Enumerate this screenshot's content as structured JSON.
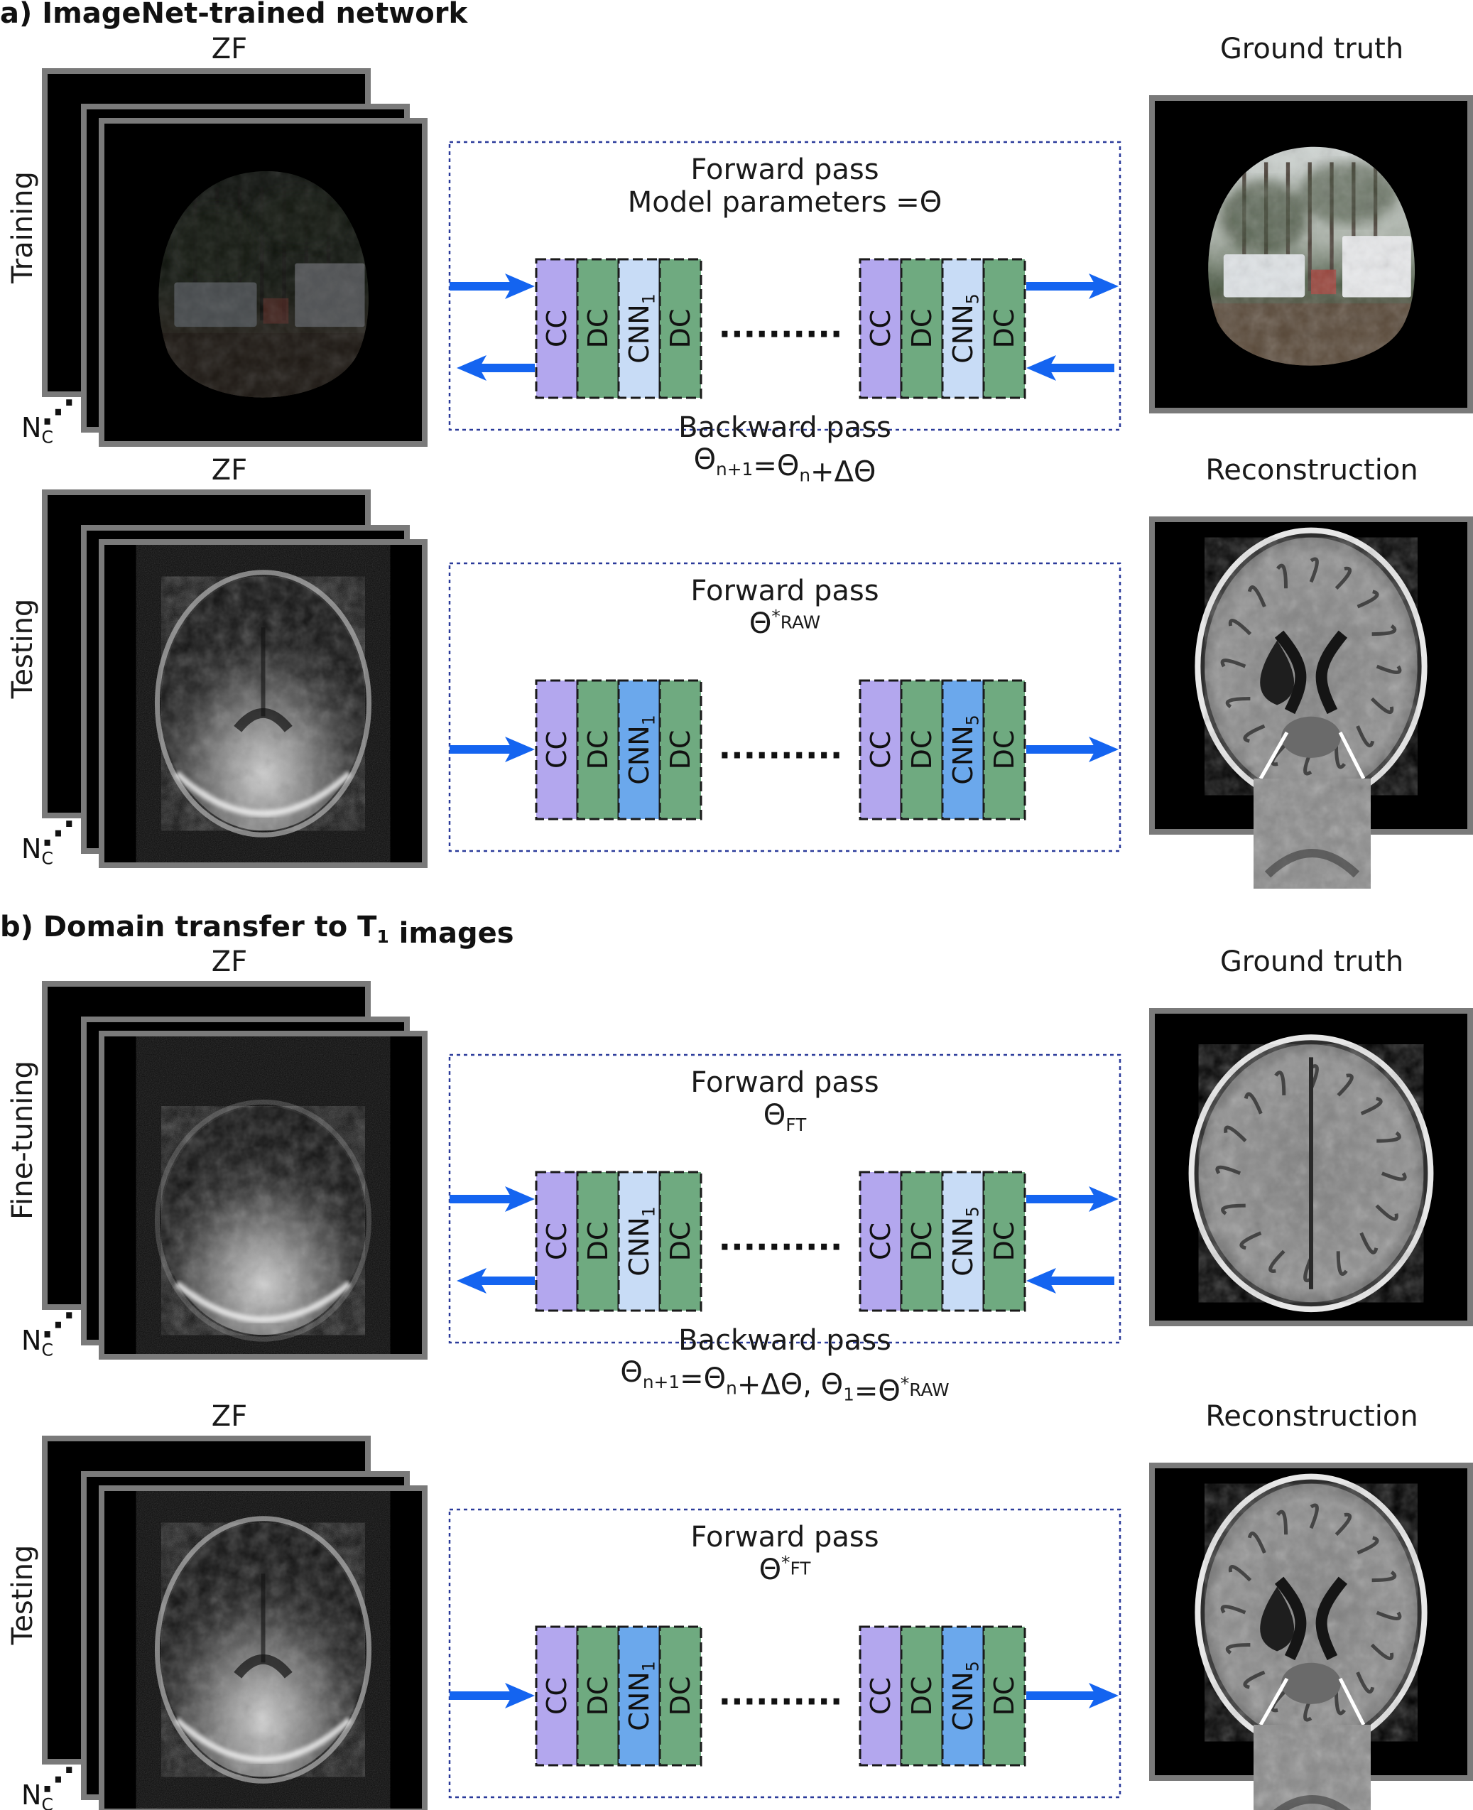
{
  "colors": {
    "cc": "#b3a7ee",
    "dc": "#6faa80",
    "cnn_light": "#c8dcf6",
    "cnn_dark": "#6ba8ec",
    "arrow": "#1464f0",
    "frame": "#7a7a7a",
    "dashed_box": "#2a3a9a"
  },
  "section_a": {
    "title": "a) ImageNet-trained network",
    "rows": [
      {
        "side_label": "Training",
        "zf_label": "ZF",
        "nc_label": "N",
        "nc_sub": "C",
        "pass_top_1": "Forward pass",
        "pass_top_2": "Model parameters =Θ",
        "pass_bottom_1": "Backward pass",
        "pass_bottom_2": "Θn+1=Θn+ΔΘ",
        "right_label": "Ground truth",
        "bidirectional": true,
        "cnn_style": "light",
        "zf_image": "natural",
        "right_image": "natural"
      },
      {
        "side_label": "Testing",
        "zf_label": "ZF",
        "nc_label": "N",
        "nc_sub": "C",
        "pass_top_1": "Forward pass",
        "pass_top_2": "Θ*RAW",
        "right_label": "Reconstruction",
        "bidirectional": false,
        "cnn_style": "dark",
        "zf_image": "brain",
        "right_image": "brain-recon"
      }
    ]
  },
  "section_b": {
    "title": "b) Domain transfer to T1 images",
    "rows": [
      {
        "side_label": "Fine-tuning",
        "zf_label": "ZF",
        "nc_label": "N",
        "nc_sub": "C",
        "pass_top_1": "Forward pass",
        "pass_top_2": "ΘFT",
        "pass_bottom_1": "Backward pass",
        "pass_bottom_2": "Θn+1=Θn+ΔΘ, Θ1=Θ*RAW",
        "right_label": "Ground truth",
        "bidirectional": true,
        "cnn_style": "light",
        "zf_image": "brain-top",
        "right_image": "brain-gt"
      },
      {
        "side_label": "Testing",
        "zf_label": "ZF",
        "nc_label": "N",
        "nc_sub": "C",
        "pass_top_1": "Forward pass",
        "pass_top_2": "Θ*FT",
        "right_label": "Reconstruction",
        "bidirectional": false,
        "cnn_style": "dark",
        "zf_image": "brain",
        "right_image": "brain-recon"
      }
    ]
  },
  "blocks": {
    "cc": "CC",
    "dc": "DC",
    "cnn_first": "CNN",
    "cnn_first_sub": "1",
    "cnn_last": "CNN",
    "cnn_last_sub": "5",
    "ellipsis": ".........."
  }
}
